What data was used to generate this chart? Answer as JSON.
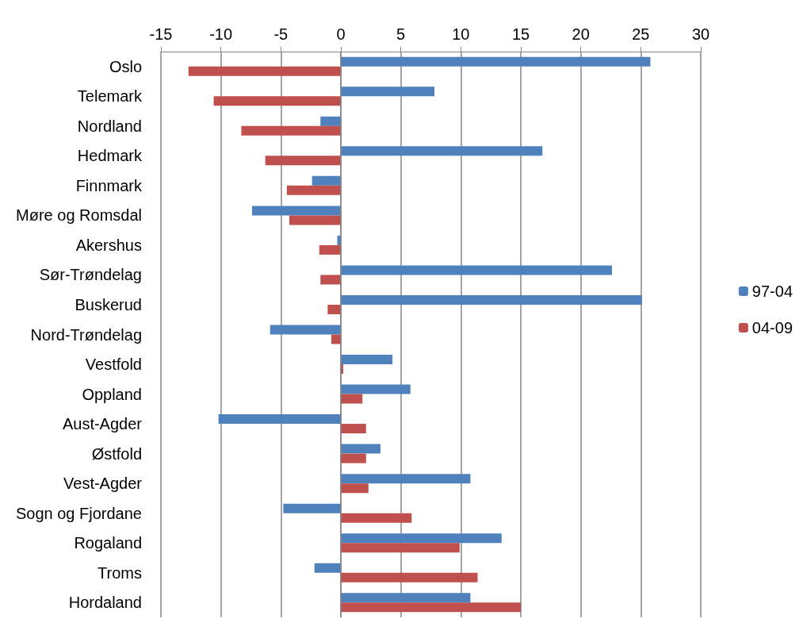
{
  "chart_data": {
    "type": "bar",
    "orientation": "horizontal",
    "categories": [
      "Oslo",
      "Telemark",
      "Nordland",
      "Hedmark",
      "Finnmark",
      "Møre og Romsdal",
      "Akershus",
      "Sør-Trøndelag",
      "Buskerud",
      "Nord-Trøndelag",
      "Vestfold",
      "Oppland",
      "Aust-Agder",
      "Østfold",
      "Vest-Agder",
      "Sogn og Fjordane",
      "Rogaland",
      "Troms",
      "Hordaland"
    ],
    "series": [
      {
        "name": "97-04",
        "color": "#4f81bd",
        "values": [
          25.8,
          7.8,
          -1.7,
          16.8,
          -2.4,
          -7.4,
          -0.3,
          22.6,
          25.1,
          -5.9,
          4.3,
          5.8,
          -10.2,
          3.3,
          10.8,
          -4.8,
          13.4,
          -2.2,
          10.8
        ]
      },
      {
        "name": "04-09",
        "color": "#c0504d",
        "values": [
          -12.7,
          -10.6,
          -8.3,
          -6.3,
          -4.5,
          -4.3,
          -1.8,
          -1.7,
          -1.1,
          -0.8,
          0.2,
          1.8,
          2.1,
          2.1,
          2.3,
          5.9,
          9.9,
          11.4,
          15.0
        ]
      }
    ],
    "xlim": [
      -15,
      30
    ],
    "xticks": [
      -15,
      -10,
      -5,
      0,
      5,
      10,
      15,
      20,
      25,
      30
    ],
    "grid": "x",
    "legend": "right"
  }
}
